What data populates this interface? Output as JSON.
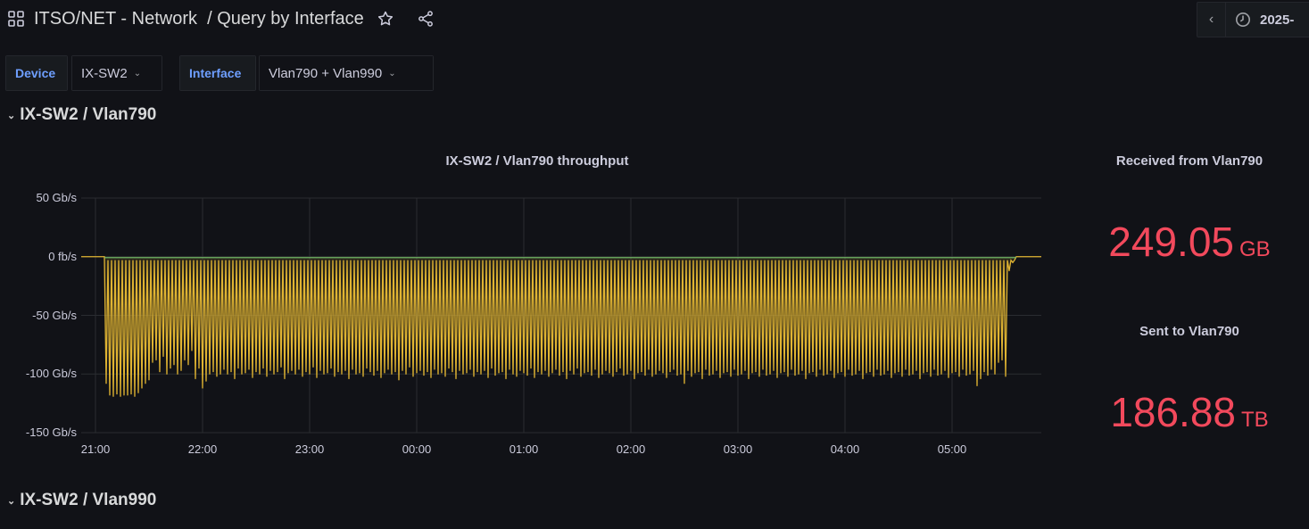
{
  "header": {
    "title": "ITSO/NET - Network",
    "subtitle": "/ Query by Interface",
    "icons": [
      "apps-icon",
      "star-icon",
      "share-icon"
    ]
  },
  "time_picker": {
    "label": "2025-",
    "icons": [
      "chevron-left-icon",
      "clock-icon"
    ]
  },
  "variables": [
    {
      "label": "Device",
      "value": "IX-SW2"
    },
    {
      "label": "Interface",
      "value": "Vlan790 + Vlan990"
    }
  ],
  "rows": [
    {
      "title": "IX-SW2 / Vlan790"
    },
    {
      "title": "IX-SW2 / Vlan990"
    }
  ],
  "stats": [
    {
      "title": "Received from Vlan790",
      "value": "249.05",
      "unit": "GB"
    },
    {
      "title": "Sent to Vlan790",
      "value": "186.88",
      "unit": "TB"
    }
  ],
  "colors": {
    "background": "#111217",
    "stat": "#f2495c",
    "series_sent": "#e0b432",
    "series_received": "#73bf69",
    "variable_label": "#6e9fff"
  },
  "chart_data": {
    "type": "line",
    "title": "IX-SW2 / Vlan790 throughput",
    "ylim": [
      -150,
      50
    ],
    "y_ticks": [
      "50 Gb/s",
      "0 fb/s",
      "-50 Gb/s",
      "-100 Gb/s",
      "-150 Gb/s"
    ],
    "y_tick_values": [
      50,
      0,
      -50,
      -100,
      -150
    ],
    "x_ticks": [
      "21:00",
      "22:00",
      "23:00",
      "00:00",
      "01:00",
      "02:00",
      "03:00",
      "04:00",
      "05:00"
    ],
    "x_range": [
      "20:52",
      "05:50"
    ],
    "grid": true,
    "units": "Gb/s",
    "series": [
      {
        "color": "#73bf69",
        "values_const": 0
      },
      {
        "color": "#e0b432",
        "start": "21:06",
        "interval_min": 2,
        "baseline_between": -3,
        "troughs": [
          -108,
          -118,
          -119,
          -117,
          -119,
          -118,
          -118,
          -117,
          -119,
          -116,
          -112,
          -108,
          -105,
          -90,
          -88,
          -98,
          -85,
          -100,
          -95,
          -92,
          -100,
          -97,
          -88,
          -92,
          -80,
          -104,
          -95,
          -112,
          -106,
          -100,
          -98,
          -102,
          -100,
          -96,
          -100,
          -98,
          -104,
          -95,
          -100,
          -99,
          -96,
          -103,
          -98,
          -100,
          -95,
          -102,
          -97,
          -100,
          -98,
          -94,
          -104,
          -99,
          -97,
          -100,
          -96,
          -102,
          -98,
          -100,
          -94,
          -103,
          -97,
          -100,
          -99,
          -95,
          -102,
          -98,
          -100,
          -97,
          -104,
          -96,
          -100,
          -99,
          -102,
          -95,
          -98,
          -101,
          -97,
          -103,
          -99,
          -96,
          -100,
          -98,
          -105,
          -97,
          -100,
          -94,
          -102,
          -99,
          -97,
          -101,
          -98,
          -103,
          -96,
          -100,
          -99,
          -102,
          -95,
          -98,
          -104,
          -97,
          -100,
          -99,
          -96,
          -102,
          -98,
          -100,
          -97,
          -103,
          -95,
          -101,
          -99,
          -98,
          -104,
          -96,
          -100,
          -102,
          -97,
          -99,
          -101,
          -95,
          -103,
          -98,
          -100,
          -97,
          -102,
          -99,
          -96,
          -101,
          -98,
          -104,
          -97,
          -100,
          -95,
          -102,
          -99,
          -98,
          -101,
          -96,
          -103,
          -100,
          -97,
          -99,
          -102,
          -98,
          -95,
          -101,
          -100,
          -97,
          -104,
          -99,
          -98,
          -101,
          -96,
          -102,
          -100,
          -97,
          -99,
          -103,
          -98,
          -96,
          -101,
          -100,
          -108,
          -97,
          -102,
          -99,
          -98,
          -104,
          -96,
          -101,
          -100,
          -97,
          -103,
          -99,
          -98,
          -102,
          -96,
          -101,
          -100,
          -97,
          -104,
          -99,
          -98,
          -102,
          -96,
          -101,
          -100,
          -97,
          -103,
          -99,
          -98,
          -102,
          -96,
          -101,
          -100,
          -97,
          -104,
          -99,
          -98,
          -102,
          -96,
          -101,
          -100,
          -97,
          -103,
          -99,
          -98,
          -102,
          -96,
          -101,
          -100,
          -97,
          -104,
          -99,
          -98,
          -102,
          -96,
          -101,
          -100,
          -97,
          -103,
          -99,
          -98,
          -102,
          -96,
          -101,
          -100,
          -97,
          -104,
          -99,
          -98,
          -102,
          -96,
          -101,
          -100,
          -97,
          -103,
          -99,
          -98,
          -102,
          -96,
          -101,
          -100,
          -97,
          -110,
          -104,
          -98,
          -101,
          -96,
          -100,
          -90,
          -88,
          -102,
          -12,
          -5
        ]
      }
    ]
  }
}
